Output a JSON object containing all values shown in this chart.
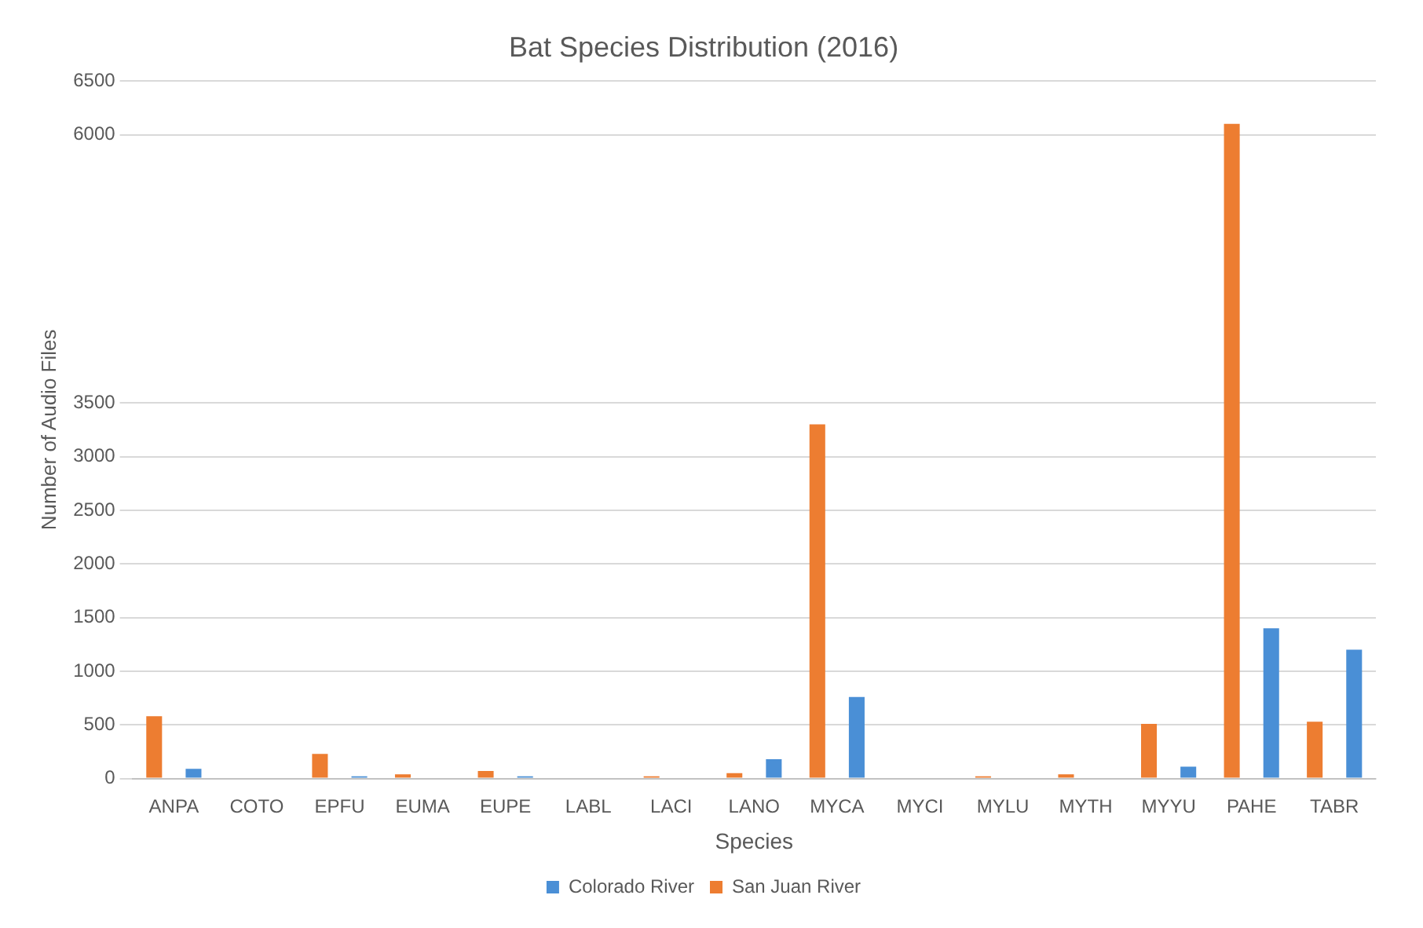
{
  "chart_data": {
    "type": "bar",
    "title": "Bat Species Distribution (2016)",
    "xlabel": "Species",
    "ylabel": "Number of Audio Files",
    "categories": [
      "ANPA",
      "COTO",
      "EPFU",
      "EUMA",
      "EUPE",
      "LABL",
      "LACI",
      "LANO",
      "MYCA",
      "MYCI",
      "MYLU",
      "MYTH",
      "MYYU",
      "PAHE",
      "TABR"
    ],
    "series": [
      {
        "name": "Colorado River",
        "color": "#4a8fd6",
        "values": [
          90,
          0,
          20,
          0,
          20,
          0,
          null,
          180,
          760,
          0,
          0,
          null,
          110,
          1400,
          1200
        ]
      },
      {
        "name": "San Juan River",
        "color": "#ed7d31",
        "values": [
          580,
          0,
          230,
          40,
          70,
          0,
          20,
          50,
          3300,
          0,
          20,
          40,
          510,
          6100,
          530
        ]
      }
    ],
    "ylim": [
      0,
      6500
    ],
    "yticks": [
      0,
      500,
      1000,
      1500,
      2000,
      2500,
      3000,
      3500,
      6000,
      6500
    ],
    "grid": "y",
    "legend": "bottom"
  }
}
